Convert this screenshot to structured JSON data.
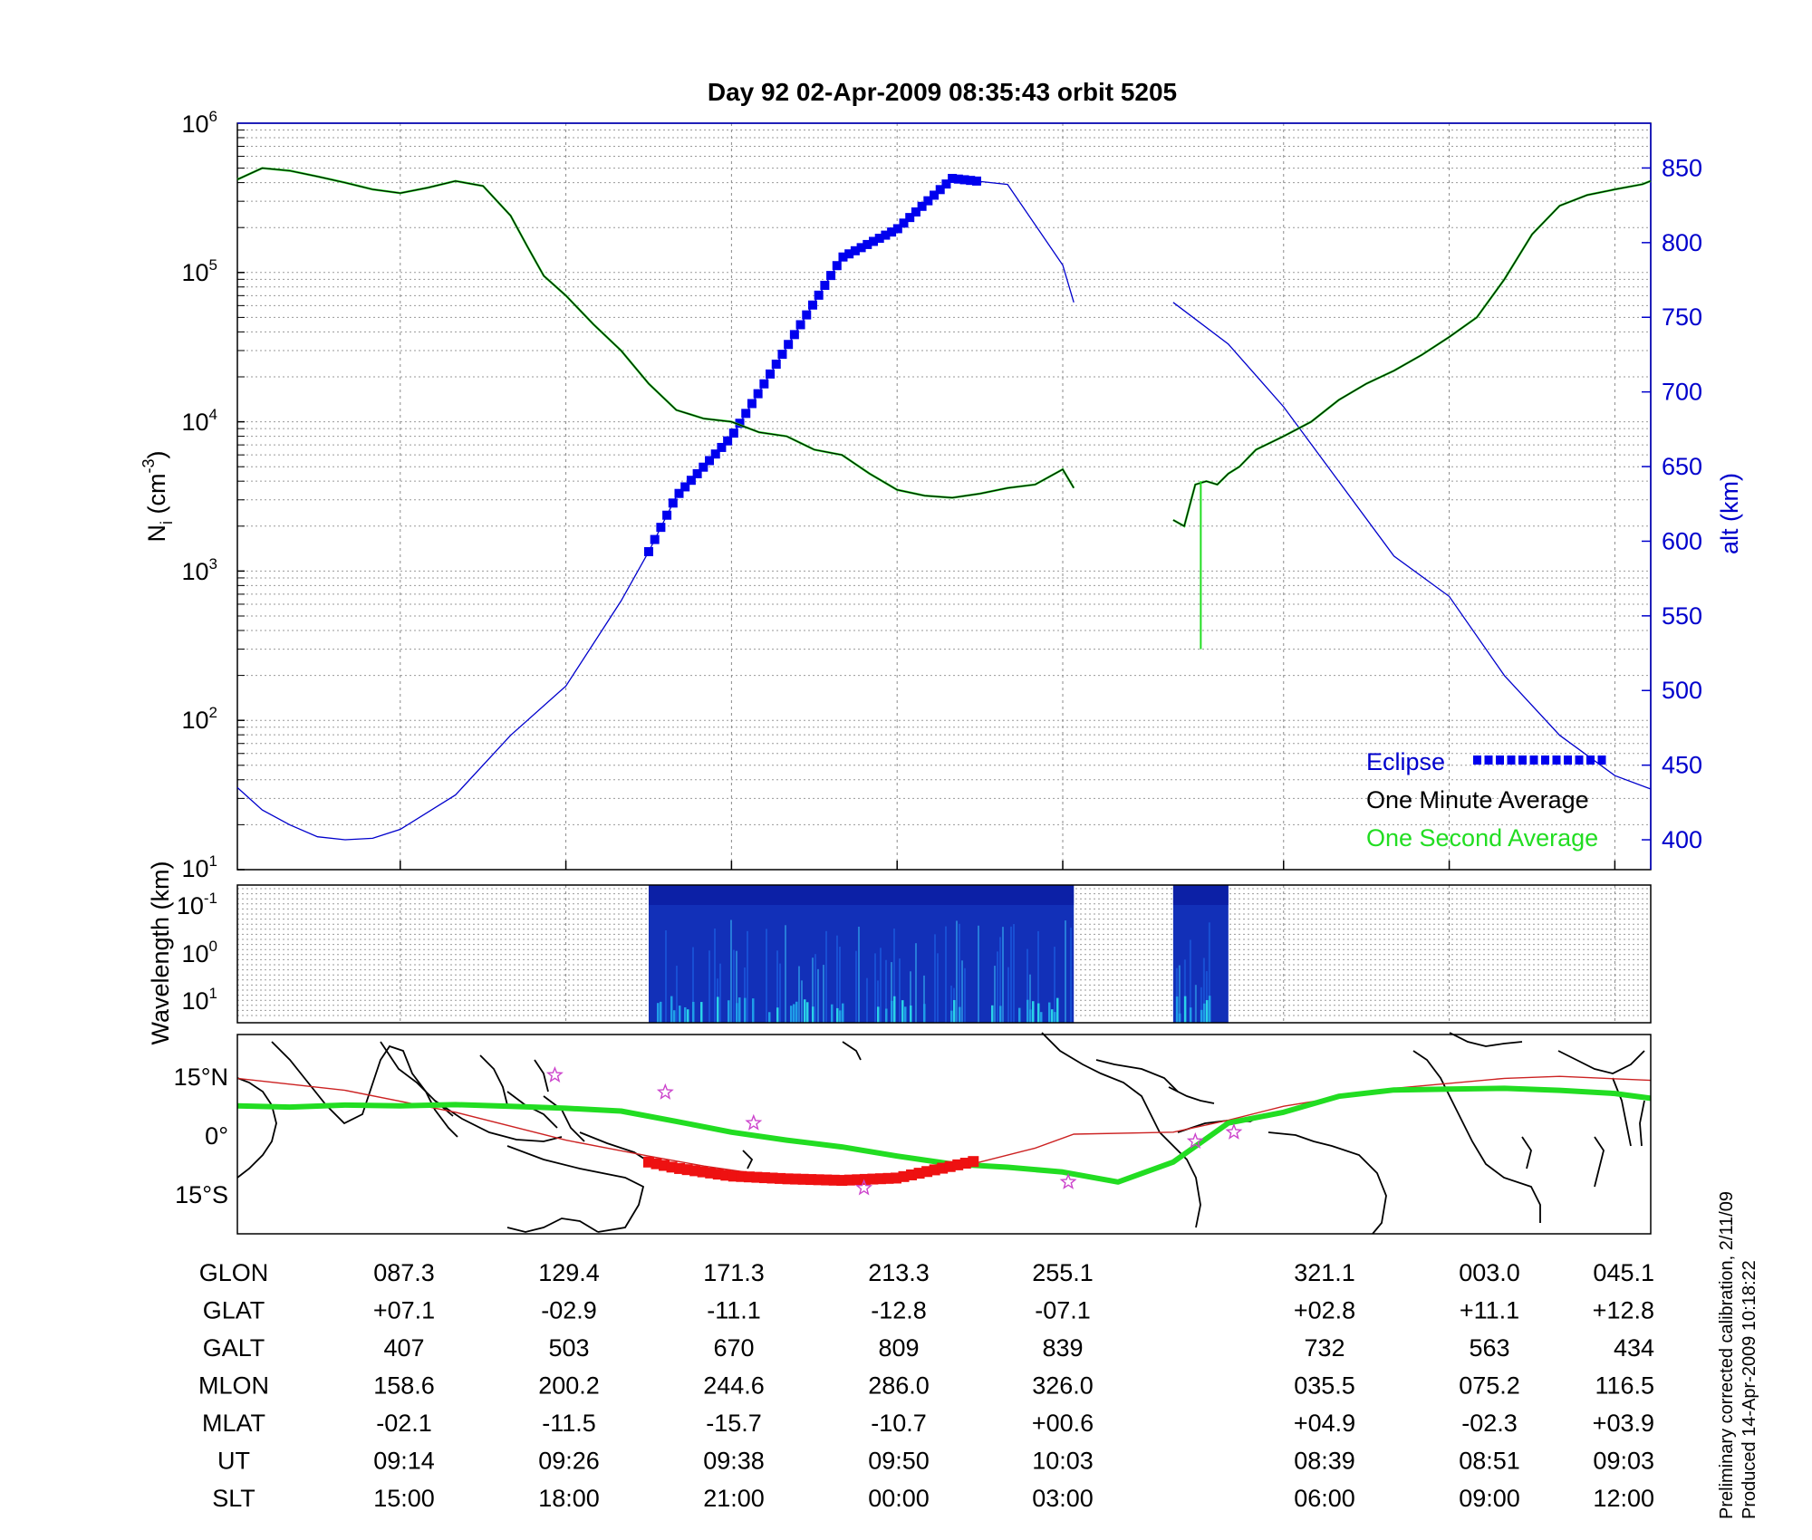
{
  "title": "Day 92  02-Apr-2009 08:35:43   orbit 5205",
  "top_panel": {
    "y_label_main": "N",
    "y_label_sub": "i",
    "y_label_unit_pre": " (cm",
    "y_label_unit_exp": "-3",
    "y_label_unit_post": ")",
    "y_ticks": [
      {
        "base": "10",
        "exp": "6",
        "value": 1000000
      },
      {
        "base": "10",
        "exp": "5",
        "value": 100000
      },
      {
        "base": "10",
        "exp": "4",
        "value": 10000
      },
      {
        "base": "10",
        "exp": "3",
        "value": 1000
      },
      {
        "base": "10",
        "exp": "2",
        "value": 100
      },
      {
        "base": "10",
        "exp": "1",
        "value": 10
      }
    ],
    "right_label": "alt (km)",
    "right_ticks": [
      "850",
      "800",
      "750",
      "700",
      "650",
      "600",
      "550",
      "500",
      "450",
      "400"
    ],
    "legend": {
      "eclipse": "Eclipse",
      "one_minute": "One Minute Average",
      "one_second": "One Second Average"
    }
  },
  "spectrogram": {
    "y_label": "Wavelength (km)",
    "y_ticks": [
      {
        "base": "10",
        "exp": "-1"
      },
      {
        "base": "10",
        "exp": "0"
      },
      {
        "base": "10",
        "exp": "1"
      }
    ]
  },
  "map_panel": {
    "y_ticks": [
      "15°N",
      "0°",
      "15°S"
    ]
  },
  "table": {
    "rows": [
      {
        "label": "GLON",
        "values": [
          "087.3",
          "129.4",
          "171.3",
          "213.3",
          "255.1",
          "321.1",
          "003.0",
          "045.1"
        ]
      },
      {
        "label": "GLAT",
        "values": [
          "+07.1",
          "-02.9",
          "-11.1",
          "-12.8",
          "-07.1",
          "+02.8",
          "+11.1",
          "+12.8"
        ]
      },
      {
        "label": "GALT",
        "values": [
          "407",
          "503",
          "670",
          "809",
          "839",
          "732",
          "563",
          "434"
        ]
      },
      {
        "label": "MLON",
        "values": [
          "158.6",
          "200.2",
          "244.6",
          "286.0",
          "326.0",
          "035.5",
          "075.2",
          "116.5"
        ]
      },
      {
        "label": "MLAT",
        "values": [
          "-02.1",
          "-11.5",
          "-15.7",
          "-10.7",
          "+00.6",
          "+04.9",
          "-02.3",
          "+03.9"
        ]
      },
      {
        "label": "UT",
        "values": [
          "09:14",
          "09:26",
          "09:38",
          "09:50",
          "10:03",
          "08:39",
          "08:51",
          "09:03"
        ]
      },
      {
        "label": "SLT",
        "values": [
          "15:00",
          "18:00",
          "21:00",
          "00:00",
          "03:00",
          "06:00",
          "09:00",
          "12:00"
        ]
      }
    ]
  },
  "footnote": {
    "line1": "Preliminary corrected calibration, 2/11/09",
    "line2": "Produced 14-Apr-2009 10:18:22"
  },
  "colors": {
    "altitude": "#0000cc",
    "eclipse": "#0000ee",
    "one_minute": "#000000",
    "one_second": "#22dd22",
    "ground_track": "#22dd22",
    "ground_track_eclipse": "#ee1111",
    "magnetic_equator": "#cc2222",
    "stars": "#cc44cc"
  },
  "chart_data": [
    {
      "type": "line",
      "panel": "ion density and altitude",
      "x_ticks_slt": [
        "15:00",
        "18:00",
        "21:00",
        "00:00",
        "03:00",
        "06:00",
        "09:00",
        "12:00"
      ],
      "x_range_slt_hours": [
        12.05,
        37.65
      ],
      "y_scale": "log",
      "ylim": [
        10,
        1000000
      ],
      "y2lim": [
        380,
        880
      ],
      "series": [
        {
          "name": "One Minute Average",
          "role": "ion_density",
          "segments": [
            {
              "x": [
                12.05,
                12.5,
                13.0,
                13.5,
                14.0,
                14.5,
                15.0,
                15.5,
                16.0,
                16.5,
                17.0,
                17.3,
                17.6,
                18.0,
                18.5,
                19.0,
                19.5,
                20.0,
                20.5,
                21.0,
                21.5,
                22.0,
                22.5,
                23.0,
                23.5,
                24.0,
                24.5,
                25.0,
                25.5,
                26.0,
                26.5,
                27.0,
                27.2
              ],
              "y": [
                420000,
                500000,
                480000,
                440000,
                400000,
                360000,
                340000,
                370000,
                410000,
                380000,
                240000,
                150000,
                95000,
                70000,
                45000,
                30000,
                18000,
                12000,
                10500,
                10000,
                8500,
                8000,
                6500,
                6000,
                4500,
                3500,
                3200,
                3100,
                3300,
                3600,
                3800,
                4800,
                3600
              ]
            },
            {
              "x": [
                29.0,
                29.2,
                29.4,
                29.6,
                29.8,
                30.0,
                30.2,
                30.5,
                31.0,
                31.5,
                32.0,
                32.5,
                33.0,
                33.5,
                34.0,
                34.5,
                35.0,
                35.5,
                36.0,
                36.5,
                37.0,
                37.5,
                37.65
              ],
              "y": [
                2200,
                2000,
                3800,
                4000,
                3800,
                4500,
                5000,
                6500,
                8000,
                10000,
                14000,
                18000,
                22000,
                28000,
                37000,
                50000,
                90000,
                180000,
                280000,
                330000,
                360000,
                390000,
                410000
              ]
            }
          ]
        },
        {
          "name": "One Second Average",
          "role": "ion_density",
          "spike": {
            "x": 29.5,
            "y_from": 4000,
            "y_to": 300
          }
        },
        {
          "name": "alt (km)",
          "role": "altitude",
          "x": [
            12.05,
            12.5,
            13.0,
            13.5,
            14.0,
            14.5,
            15.0,
            16.0,
            17.0,
            18.0,
            19.0,
            19.5,
            20.0,
            20.5,
            21.0,
            22.0,
            23.0,
            24.0,
            25.0,
            26.0,
            27.0,
            27.2,
            29.0,
            30.0,
            31.0,
            32.0,
            33.0,
            34.0,
            35.0,
            36.0,
            37.0,
            37.65
          ],
          "y": [
            435,
            420,
            410,
            402,
            400,
            401,
            407,
            430,
            470,
            503,
            560,
            593,
            630,
            650,
            670,
            730,
            790,
            809,
            843,
            839,
            785,
            760,
            760,
            732,
            690,
            640,
            590,
            563,
            510,
            470,
            443,
            434
          ]
        },
        {
          "name": "Eclipse",
          "role": "eclipse_on_altitude",
          "x_range": [
            19.5,
            25.5
          ]
        }
      ]
    },
    {
      "type": "heatmap",
      "panel": "wavelength spectrogram",
      "y_scale": "log",
      "y_ticks": [
        "10^-1",
        "10^0",
        "10^1"
      ],
      "active_x_ranges_slt_hours": [
        [
          19.5,
          27.2
        ],
        [
          29.0,
          30.0
        ]
      ]
    },
    {
      "type": "line",
      "panel": "ground track map",
      "y_ticks": [
        "15°N",
        "0°",
        "15°S"
      ],
      "ylim": [
        -25,
        25
      ],
      "series": [
        {
          "role": "ground_track",
          "x": [
            12.05,
            13.0,
            14.0,
            15.0,
            16.0,
            17.0,
            18.0,
            19.0,
            20.0,
            21.0,
            22.0,
            23.0,
            24.0,
            25.0,
            26.0,
            27.0,
            28.0,
            29.0,
            30.0,
            31.0,
            32.0,
            33.0,
            34.0,
            35.0,
            36.0,
            37.0,
            37.65
          ],
          "y": [
            7.1,
            6.8,
            7.3,
            7.1,
            7.4,
            7.0,
            6.5,
            5.8,
            3.2,
            0.5,
            -1.5,
            -3.2,
            -5.5,
            -7.5,
            -8.3,
            -9.5,
            -12.0,
            -7.0,
            2.8,
            5.5,
            9.5,
            11.1,
            11.3,
            11.5,
            11.0,
            10.2,
            9.0
          ]
        },
        {
          "role": "eclipse_ground_track",
          "x": [
            19.5,
            20.0,
            21.0,
            22.0,
            23.0,
            24.0,
            25.0,
            25.5
          ],
          "y": [
            -7.0,
            -8.5,
            -10.5,
            -11.2,
            -11.6,
            -11.0,
            -8.0,
            -6.5
          ]
        },
        {
          "role": "magnetic_equator",
          "x": [
            12.05,
            14.0,
            16.0,
            18.0,
            19.5,
            20.5,
            22.0,
            24.0,
            25.5,
            26.5,
            27.2,
            29.0,
            30.0,
            31.0,
            33.0,
            35.0,
            36.0,
            37.65
          ],
          "y": [
            14.0,
            11.0,
            5.5,
            -1.5,
            -5.5,
            -8.0,
            -11.0,
            -11.5,
            -7.0,
            -3.5,
            0.0,
            0.5,
            3.5,
            7.0,
            11.5,
            14.0,
            14.5,
            13.5
          ]
        },
        {
          "role": "stars",
          "x": [
            17.8,
            19.8,
            21.4,
            23.4,
            27.1,
            29.4,
            30.1
          ],
          "y": [
            14.8,
            10.5,
            2.8,
            -13.5,
            -12.0,
            -1.8,
            0.5
          ]
        }
      ]
    }
  ]
}
